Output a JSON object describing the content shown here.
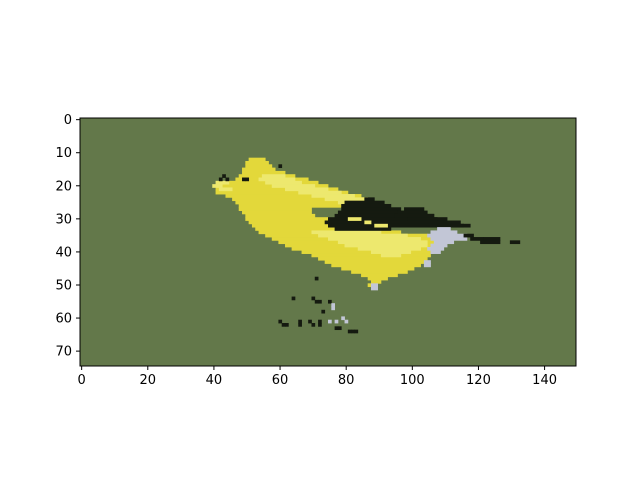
{
  "chart_data": {
    "type": "heatmap",
    "title": "",
    "xlabel": "",
    "ylabel": "",
    "xlim": [
      -0.5,
      149.5
    ],
    "ylim": [
      74.5,
      -0.5
    ],
    "x_ticks": [
      0,
      20,
      40,
      60,
      80,
      100,
      120,
      140
    ],
    "y_ticks": [
      0,
      10,
      20,
      30,
      40,
      50,
      60,
      70
    ],
    "image_size": {
      "width": 150,
      "height": 75
    },
    "grid": false,
    "palette": {
      "background": "#63784a",
      "yellow": "#e3d83a",
      "light_yellow": "#ede86e",
      "dark": "#151a10",
      "gray": "#c2c6d6",
      "spine": "#000000"
    },
    "regions": [
      {
        "kind": "body",
        "color": "yellow",
        "rows": [
          [
            12,
            51,
            55
          ],
          [
            13,
            50,
            56
          ],
          [
            14,
            50,
            57
          ],
          [
            15,
            49,
            58
          ],
          [
            16,
            49,
            61
          ],
          [
            17,
            48,
            64
          ],
          [
            18,
            47,
            68
          ],
          [
            19,
            45,
            71
          ],
          [
            20,
            43,
            74
          ],
          [
            21,
            41,
            77
          ],
          [
            22,
            41,
            80
          ],
          [
            23,
            44,
            84
          ],
          [
            24,
            46,
            86
          ],
          [
            25,
            47,
            87
          ],
          [
            26,
            48,
            80
          ],
          [
            27,
            48,
            69
          ],
          [
            28,
            49,
            69
          ],
          [
            29,
            50,
            70
          ],
          [
            30,
            50,
            74
          ],
          [
            31,
            51,
            80
          ],
          [
            32,
            52,
            84
          ],
          [
            33,
            53,
            88
          ],
          [
            34,
            54,
            96
          ],
          [
            35,
            56,
            104
          ],
          [
            36,
            58,
            107
          ],
          [
            37,
            60,
            108
          ],
          [
            38,
            62,
            107
          ],
          [
            39,
            64,
            107
          ],
          [
            40,
            67,
            106
          ],
          [
            41,
            70,
            105
          ],
          [
            42,
            72,
            104
          ],
          [
            43,
            74,
            103
          ],
          [
            44,
            76,
            102
          ],
          [
            45,
            79,
            100
          ],
          [
            46,
            82,
            98
          ],
          [
            47,
            85,
            95
          ],
          [
            48,
            87,
            92
          ],
          [
            49,
            88,
            90
          ],
          [
            50,
            87,
            89
          ]
        ]
      },
      {
        "kind": "highlight",
        "color": "light_yellow",
        "rows": [
          [
            17,
            55,
            61
          ],
          [
            18,
            54,
            64
          ],
          [
            19,
            56,
            66
          ],
          [
            20,
            58,
            70
          ],
          [
            21,
            62,
            74
          ],
          [
            22,
            66,
            78
          ],
          [
            23,
            70,
            82
          ],
          [
            24,
            74,
            86
          ],
          [
            25,
            78,
            88
          ],
          [
            26,
            82,
            89
          ],
          [
            19,
            41,
            44
          ],
          [
            20,
            40,
            42
          ],
          [
            21,
            42,
            45
          ],
          [
            34,
            70,
            90
          ],
          [
            35,
            72,
            98
          ],
          [
            36,
            75,
            102
          ],
          [
            37,
            78,
            104
          ],
          [
            38,
            80,
            104
          ],
          [
            39,
            84,
            102
          ],
          [
            40,
            88,
            99
          ],
          [
            41,
            91,
            96
          ]
        ]
      },
      {
        "kind": "wing",
        "color": "dark",
        "rows": [
          [
            24,
            86,
            88
          ],
          [
            25,
            80,
            91
          ],
          [
            26,
            79,
            93
          ],
          [
            27,
            79,
            96
          ],
          [
            28,
            78,
            101
          ],
          [
            29,
            77,
            106
          ],
          [
            30,
            75,
            110
          ],
          [
            31,
            74,
            114
          ],
          [
            32,
            75,
            115
          ],
          [
            33,
            77,
            93
          ],
          [
            27,
            98,
            103
          ],
          [
            28,
            96,
            104
          ],
          [
            29,
            95,
            106
          ],
          [
            30,
            99,
            107
          ],
          [
            31,
            110,
            114
          ],
          [
            32,
            112,
            117
          ]
        ]
      },
      {
        "kind": "wing-mark",
        "color": "light_yellow",
        "rows": [
          [
            30,
            81,
            84
          ],
          [
            31,
            86,
            87
          ],
          [
            32,
            89,
            92
          ]
        ]
      },
      {
        "kind": "tail",
        "color": "gray",
        "rows": [
          [
            33,
            108,
            111
          ],
          [
            34,
            106,
            113
          ],
          [
            35,
            105,
            116
          ],
          [
            36,
            106,
            116
          ],
          [
            37,
            107,
            112
          ],
          [
            38,
            106,
            110
          ],
          [
            39,
            105,
            109
          ],
          [
            40,
            106,
            108
          ],
          [
            43,
            104,
            105
          ],
          [
            44,
            104,
            105
          ],
          [
            50,
            88,
            89
          ],
          [
            51,
            88,
            89
          ]
        ]
      },
      {
        "kind": "tail-tip",
        "color": "dark",
        "rows": [
          [
            35,
            116,
            118
          ],
          [
            36,
            118,
            121
          ],
          [
            36,
            122,
            126
          ],
          [
            37,
            121,
            126
          ],
          [
            37,
            130,
            132
          ]
        ]
      }
    ],
    "specks": [
      {
        "x": 43,
        "y": 17,
        "color": "dark"
      },
      {
        "x": 42,
        "y": 18,
        "color": "dark"
      },
      {
        "x": 44,
        "y": 18,
        "color": "dark"
      },
      {
        "x": 49,
        "y": 18,
        "color": "dark"
      },
      {
        "x": 50,
        "y": 18,
        "color": "dark"
      },
      {
        "x": 60,
        "y": 14,
        "color": "dark"
      },
      {
        "x": 71,
        "y": 48,
        "color": "dark"
      },
      {
        "x": 64,
        "y": 54,
        "color": "dark"
      },
      {
        "x": 70,
        "y": 54,
        "color": "dark"
      },
      {
        "x": 71,
        "y": 55,
        "color": "dark"
      },
      {
        "x": 72,
        "y": 55,
        "color": "dark"
      },
      {
        "x": 75,
        "y": 55,
        "color": "dark"
      },
      {
        "x": 73,
        "y": 58,
        "color": "dark"
      },
      {
        "x": 76,
        "y": 56,
        "color": "gray"
      },
      {
        "x": 76,
        "y": 57,
        "color": "gray"
      },
      {
        "x": 60,
        "y": 61,
        "color": "dark"
      },
      {
        "x": 61,
        "y": 62,
        "color": "dark"
      },
      {
        "x": 62,
        "y": 62,
        "color": "dark"
      },
      {
        "x": 66,
        "y": 61,
        "color": "dark"
      },
      {
        "x": 66,
        "y": 62,
        "color": "dark"
      },
      {
        "x": 69,
        "y": 61,
        "color": "dark"
      },
      {
        "x": 72,
        "y": 61,
        "color": "dark"
      },
      {
        "x": 72,
        "y": 62,
        "color": "dark"
      },
      {
        "x": 70,
        "y": 62,
        "color": "dark"
      },
      {
        "x": 75,
        "y": 61,
        "color": "gray"
      },
      {
        "x": 77,
        "y": 61,
        "color": "gray"
      },
      {
        "x": 77,
        "y": 63,
        "color": "dark"
      },
      {
        "x": 78,
        "y": 63,
        "color": "dark"
      },
      {
        "x": 79,
        "y": 60,
        "color": "gray"
      },
      {
        "x": 80,
        "y": 61,
        "color": "gray"
      },
      {
        "x": 81,
        "y": 64,
        "color": "dark"
      },
      {
        "x": 82,
        "y": 64,
        "color": "dark"
      },
      {
        "x": 83,
        "y": 64,
        "color": "dark"
      }
    ]
  }
}
